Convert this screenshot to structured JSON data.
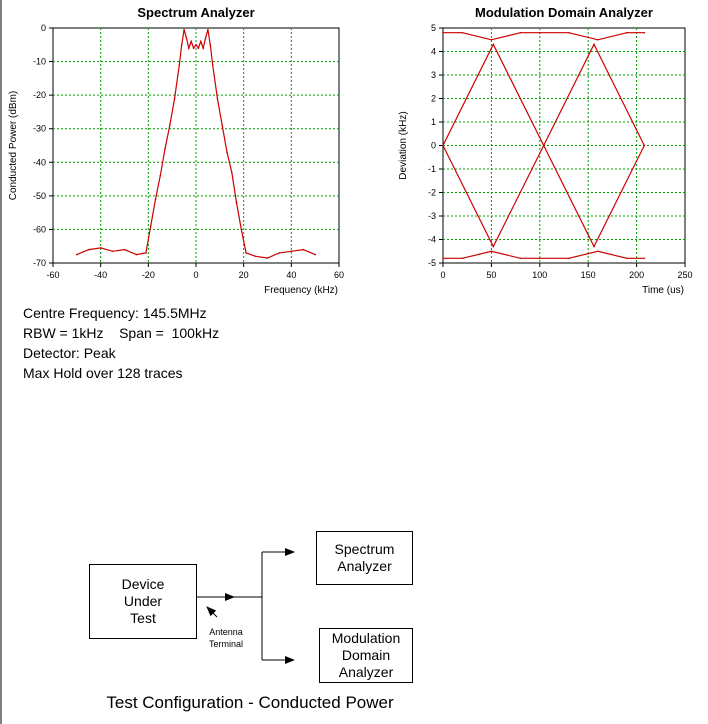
{
  "chart_data": [
    {
      "type": "line",
      "title": "Spectrum Analyzer",
      "xlabel": "Frequency (kHz)",
      "ylabel": "Conducted Power (dBm)",
      "xlim": [
        -60,
        60
      ],
      "ylim": [
        -70,
        0
      ],
      "xticks": [
        "-60",
        "-40",
        "-20",
        "0",
        "20",
        "40",
        "60"
      ],
      "yticks": [
        "0",
        "-10",
        "-20",
        "-30",
        "-40",
        "-50",
        "-60",
        "-70"
      ],
      "grid": true,
      "series": [
        {
          "color": "#cc0000",
          "x": [
            -50,
            -45,
            -40,
            -35,
            -30,
            -25,
            -21,
            -19,
            -17,
            -15,
            -13,
            -11,
            -9,
            -7,
            -6,
            -5,
            -4,
            -3,
            -2,
            -1,
            0,
            1,
            2,
            3,
            4,
            5,
            6,
            7,
            9,
            11,
            13,
            15,
            17,
            19,
            21,
            25,
            30,
            35,
            40,
            45,
            50
          ],
          "y": [
            -67.5,
            -66,
            -65.5,
            -66.5,
            -66,
            -67.5,
            -67,
            -59,
            -51,
            -44,
            -36,
            -29,
            -21,
            -11,
            -5,
            -0.5,
            -3,
            -6,
            -4,
            -6,
            -5,
            -6,
            -4,
            -6,
            -3,
            -0.5,
            -5,
            -11,
            -21,
            -29,
            -37,
            -43,
            -52,
            -60,
            -67,
            -68,
            -68.5,
            -67,
            -66.5,
            -66,
            -67.5
          ]
        }
      ]
    },
    {
      "type": "line",
      "title": "Modulation Domain Analyzer",
      "xlabel": "Time (us)",
      "ylabel": "Deviation (kHz)",
      "xlim": [
        0,
        250
      ],
      "ylim": [
        -5,
        5
      ],
      "xticks": [
        "0",
        "50",
        "100",
        "150",
        "200",
        "250"
      ],
      "yticks": [
        "5",
        "4",
        "3",
        "2",
        "1",
        "0",
        "-1",
        "-2",
        "-3",
        "-4",
        "-5"
      ],
      "grid": true,
      "series": [
        {
          "color": "#cc0000",
          "x": [
            0,
            52,
            104,
            156,
            208
          ],
          "y": [
            0,
            4.3,
            0,
            -4.3,
            0
          ]
        },
        {
          "color": "#cc0000",
          "x": [
            0,
            52,
            104,
            156,
            208
          ],
          "y": [
            0,
            -4.3,
            0,
            4.3,
            0
          ]
        },
        {
          "color": "#cc0000",
          "x": [
            0,
            20,
            50,
            80,
            100,
            130,
            160,
            190,
            208
          ],
          "y": [
            4.8,
            4.8,
            4.5,
            4.8,
            4.8,
            4.8,
            4.5,
            4.8,
            4.8
          ]
        },
        {
          "color": "#cc0000",
          "x": [
            0,
            20,
            50,
            80,
            100,
            130,
            160,
            190,
            208
          ],
          "y": [
            -4.8,
            -4.8,
            -4.5,
            -4.8,
            -4.8,
            -4.8,
            -4.5,
            -4.8,
            -4.8
          ]
        }
      ]
    }
  ],
  "info": {
    "line1": "Centre Frequency: 145.5MHz",
    "line2": "RBW = 1kHz    Span =  100kHz",
    "line3": "Detector: Peak",
    "line4": "Max Hold over 128 traces"
  },
  "diagram": {
    "dut": [
      "Device",
      "Under",
      "Test"
    ],
    "spectrum": [
      "Spectrum",
      "Analyzer"
    ],
    "modulation": [
      "Modulation",
      "Domain",
      "Analyzer"
    ],
    "antenna": [
      "Antenna",
      "Terminal"
    ],
    "caption": "Test Configuration - Conducted Power"
  },
  "colors": {
    "trace": "#cc0000",
    "grid": "#00a000"
  }
}
